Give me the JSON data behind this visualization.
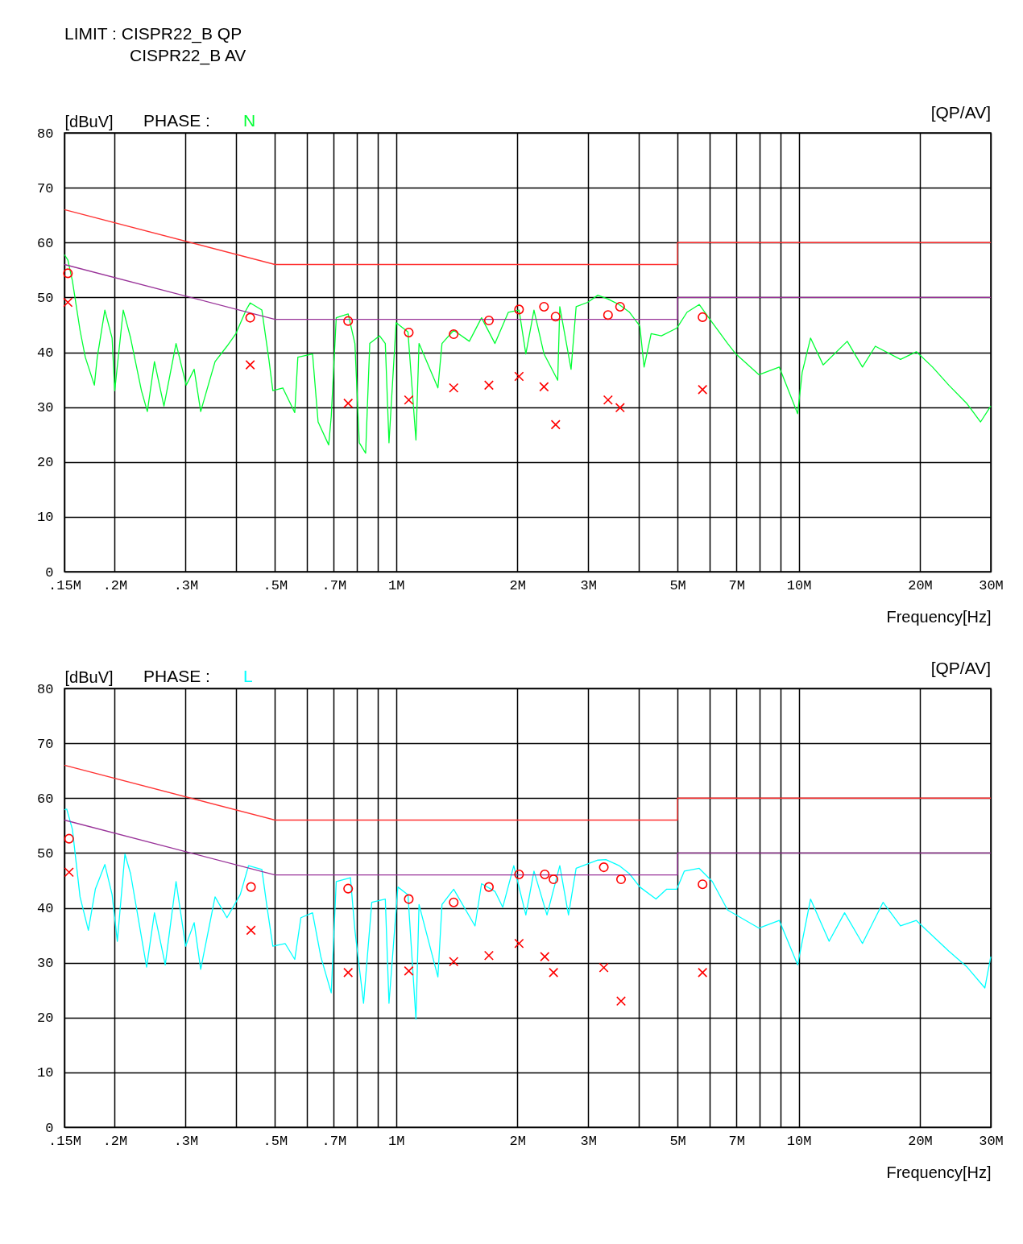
{
  "chart_data": [
    {
      "type": "line",
      "title": "PHASE :",
      "ylabel": "[dBuV]",
      "xlabel": "Frequency[Hz]",
      "annotations": [
        "LIMIT : CISPR22_B QP",
        "CISPR22_B AV",
        "[QP/AV]"
      ],
      "log": "x",
      "grid": true,
      "xlim": [
        0.15,
        30
      ],
      "xticks": [
        {
          "value": 0.15,
          "label": ".15M"
        },
        {
          "value": 0.2,
          "label": ".2M"
        },
        {
          "value": 0.3,
          "label": ".3M"
        },
        {
          "value": 0.4,
          "label": null
        },
        {
          "value": 0.5,
          "label": ".5M"
        },
        {
          "value": 0.6,
          "label": null
        },
        {
          "value": 0.7,
          "label": ".7M"
        },
        {
          "value": 0.8,
          "label": null
        },
        {
          "value": 0.9,
          "label": null
        },
        {
          "value": 1,
          "label": "1M"
        },
        {
          "value": 2,
          "label": "2M"
        },
        {
          "value": 3,
          "label": "3M"
        },
        {
          "value": 4,
          "label": null
        },
        {
          "value": 5,
          "label": "5M"
        },
        {
          "value": 6,
          "label": null
        },
        {
          "value": 7,
          "label": "7M"
        },
        {
          "value": 8,
          "label": null
        },
        {
          "value": 9,
          "label": null
        },
        {
          "value": 10,
          "label": "10M"
        },
        {
          "value": 20,
          "label": "20M"
        },
        {
          "value": 30,
          "label": "30M"
        }
      ],
      "ylim": [
        0,
        80
      ],
      "yticks": [
        0,
        10,
        20,
        30,
        40,
        50,
        60,
        70,
        80
      ],
      "series": [
        {
          "name": "N",
          "color": "#00ff33",
          "x": [
            0.15,
            0.153,
            0.157,
            0.164,
            0.169,
            0.178,
            0.181,
            0.189,
            0.197,
            0.2,
            0.21,
            0.219,
            0.233,
            0.241,
            0.251,
            0.265,
            0.284,
            0.301,
            0.315,
            0.327,
            0.355,
            0.38,
            0.4,
            0.424,
            0.434,
            0.464,
            0.483,
            0.494,
            0.523,
            0.56,
            0.57,
            0.62,
            0.64,
            0.68,
            0.69,
            0.71,
            0.76,
            0.79,
            0.81,
            0.84,
            0.86,
            0.91,
            0.94,
            0.96,
            1.0,
            1.07,
            1.12,
            1.14,
            1.27,
            1.3,
            1.39,
            1.52,
            1.63,
            1.76,
            1.9,
            2.02,
            2.1,
            2.2,
            2.33,
            2.52,
            2.55,
            2.72,
            2.8,
            2.99,
            3.17,
            3.36,
            3.58,
            3.8,
            4.03,
            4.13,
            4.3,
            4.56,
            4.98,
            5.28,
            5.66,
            6.1,
            6.66,
            6.98,
            7.97,
            8.95,
            9.94,
            10.2,
            10.7,
            11.5,
            13.2,
            14.4,
            15.5,
            17.9,
            19.6,
            21.5,
            23.6,
            26.2,
            28.3,
            30
          ],
          "values": [
            57.8,
            56.8,
            53,
            44,
            39.1,
            34,
            39.1,
            47.7,
            42.6,
            33,
            47.7,
            42.6,
            33,
            29.2,
            38.3,
            30.2,
            41.6,
            34,
            36.9,
            29.2,
            38.3,
            41.1,
            43.4,
            47.7,
            49,
            47.7,
            38.7,
            33,
            33.5,
            29,
            39.1,
            39.7,
            27.3,
            23.1,
            28.3,
            46.3,
            47,
            41.6,
            23.5,
            21.6,
            41.6,
            43,
            41.6,
            23.5,
            45.4,
            43.7,
            24,
            41.6,
            33.5,
            41.6,
            44,
            42,
            46.3,
            41.6,
            47.3,
            47.7,
            39.7,
            47.7,
            39.7,
            34.9,
            48.3,
            36.9,
            48.3,
            49.1,
            50.4,
            49.7,
            48.7,
            47.3,
            44.8,
            37.3,
            43.4,
            43,
            44.4,
            47.3,
            48.7,
            45.4,
            41.6,
            39.7,
            35.9,
            37.3,
            28.8,
            36.3,
            42.6,
            37.7,
            42,
            37.3,
            41.1,
            38.7,
            40.1,
            37.3,
            34,
            30.6,
            27.3,
            30.2
          ]
        },
        {
          "color": "#ff3333",
          "x": [
            0.15,
            0.5,
            5,
            5,
            30
          ],
          "values": [
            66,
            56,
            56,
            60,
            60
          ]
        },
        {
          "color": "#993399",
          "x": [
            0.15,
            0.5,
            5,
            5,
            30
          ],
          "values": [
            56,
            46,
            46,
            50,
            50
          ]
        },
        {
          "type": "scatter",
          "marker": "circle",
          "color": "#ff0000",
          "x": [
            0.153,
            0.434,
            0.76,
            1.075,
            1.39,
            1.7,
            2.02,
            2.33,
            2.49,
            3.36,
            3.6,
            5.77
          ],
          "values": [
            54.4,
            46.3,
            45.7,
            43.6,
            43.3,
            45.8,
            47.8,
            48.3,
            46.5,
            46.8,
            48.3,
            46.4
          ]
        },
        {
          "type": "scatter",
          "marker": "cross",
          "color": "#ff0000",
          "x": [
            0.153,
            0.434,
            0.76,
            1.075,
            1.39,
            1.7,
            2.02,
            2.33,
            2.49,
            3.36,
            3.6,
            5.77
          ],
          "values": [
            49.1,
            37.7,
            30.7,
            31.3,
            33.5,
            34,
            35.6,
            33.7,
            26.8,
            31.3,
            29.9,
            33.2
          ]
        }
      ]
    },
    {
      "type": "line",
      "title": "PHASE :",
      "ylabel": "[dBuV]",
      "xlabel": "Frequency[Hz]",
      "annotations": [
        "[QP/AV]"
      ],
      "log": "x",
      "grid": true,
      "xlim": [
        0.15,
        30
      ],
      "xticks": [
        {
          "value": 0.15,
          "label": ".15M"
        },
        {
          "value": 0.2,
          "label": ".2M"
        },
        {
          "value": 0.3,
          "label": ".3M"
        },
        {
          "value": 0.4,
          "label": null
        },
        {
          "value": 0.5,
          "label": ".5M"
        },
        {
          "value": 0.6,
          "label": null
        },
        {
          "value": 0.7,
          "label": ".7M"
        },
        {
          "value": 0.8,
          "label": null
        },
        {
          "value": 0.9,
          "label": null
        },
        {
          "value": 1,
          "label": "1M"
        },
        {
          "value": 2,
          "label": "2M"
        },
        {
          "value": 3,
          "label": "3M"
        },
        {
          "value": 4,
          "label": null
        },
        {
          "value": 5,
          "label": "5M"
        },
        {
          "value": 6,
          "label": null
        },
        {
          "value": 7,
          "label": "7M"
        },
        {
          "value": 8,
          "label": null
        },
        {
          "value": 9,
          "label": null
        },
        {
          "value": 10,
          "label": "10M"
        },
        {
          "value": 20,
          "label": "20M"
        },
        {
          "value": 30,
          "label": "30M"
        }
      ],
      "ylim": [
        0,
        80
      ],
      "yticks": [
        0,
        10,
        20,
        30,
        40,
        50,
        60,
        70,
        80
      ],
      "series": [
        {
          "name": "L",
          "color": "#00ffff",
          "x": [
            0.15,
            0.152,
            0.157,
            0.164,
            0.172,
            0.179,
            0.189,
            0.197,
            0.203,
            0.212,
            0.219,
            0.24,
            0.251,
            0.267,
            0.284,
            0.3,
            0.315,
            0.327,
            0.355,
            0.38,
            0.41,
            0.43,
            0.464,
            0.478,
            0.494,
            0.53,
            0.56,
            0.58,
            0.62,
            0.65,
            0.69,
            0.71,
            0.77,
            0.79,
            0.83,
            0.87,
            0.94,
            0.96,
            1.01,
            1.07,
            1.12,
            1.14,
            1.27,
            1.3,
            1.39,
            1.57,
            1.63,
            1.76,
            1.84,
            1.96,
            2.1,
            2.2,
            2.37,
            2.55,
            2.68,
            2.8,
            3.17,
            3.32,
            3.58,
            3.8,
            4.03,
            4.42,
            4.7,
            4.98,
            5.2,
            5.66,
            6.1,
            6.66,
            7.97,
            8.95,
            9.94,
            10.7,
            11.9,
            13,
            14.4,
            16.2,
            17.9,
            19.6,
            21.5,
            23.6,
            26.2,
            29,
            30
          ],
          "values": [
            57.9,
            58,
            54.3,
            42,
            35.9,
            43.4,
            47.9,
            42.4,
            33.9,
            49.8,
            46.2,
            29.2,
            39.1,
            29.6,
            44.8,
            33,
            37.3,
            28.8,
            42,
            38.2,
            42.4,
            47.7,
            47,
            40.1,
            33,
            33.5,
            30.6,
            38.2,
            39.1,
            31.1,
            24.5,
            44.8,
            45.5,
            35.9,
            22.6,
            41,
            41.6,
            22.6,
            43.8,
            42.4,
            19.7,
            40.6,
            27.4,
            40.6,
            43.4,
            36.7,
            44.4,
            43,
            40.1,
            47.7,
            38.7,
            46.7,
            38.7,
            47.7,
            38.7,
            47.2,
            48.7,
            48.8,
            47.7,
            46.2,
            43.8,
            41.6,
            43.4,
            43.4,
            46.7,
            47.2,
            44.8,
            39.6,
            36.3,
            37.7,
            29.6,
            41.6,
            33.9,
            39.1,
            33.5,
            41,
            36.7,
            37.7,
            34.9,
            32.1,
            29.2,
            25.4,
            31.1
          ]
        },
        {
          "color": "#ff3333",
          "x": [
            0.15,
            0.5,
            5,
            5,
            30
          ],
          "values": [
            66,
            56,
            56,
            60,
            60
          ]
        },
        {
          "color": "#993399",
          "x": [
            0.15,
            0.5,
            5,
            5,
            30
          ],
          "values": [
            56,
            46,
            46,
            50,
            50
          ]
        },
        {
          "type": "scatter",
          "marker": "circle",
          "color": "#ff0000",
          "x": [
            0.154,
            0.436,
            0.76,
            1.075,
            1.39,
            1.7,
            2.02,
            2.34,
            2.46,
            3.28,
            3.62,
            5.77
          ],
          "values": [
            52.6,
            43.8,
            43.5,
            41.6,
            41,
            43.8,
            46.1,
            46.1,
            45.2,
            47.4,
            45.2,
            44.3
          ]
        },
        {
          "type": "scatter",
          "marker": "cross",
          "color": "#ff0000",
          "x": [
            0.154,
            0.436,
            0.76,
            1.075,
            1.39,
            1.7,
            2.02,
            2.34,
            2.46,
            3.28,
            3.62,
            5.77
          ],
          "values": [
            46.5,
            35.9,
            28.2,
            28.5,
            30.2,
            31.3,
            33.5,
            31.1,
            28.2,
            29.1,
            23,
            28.2
          ]
        }
      ]
    }
  ]
}
